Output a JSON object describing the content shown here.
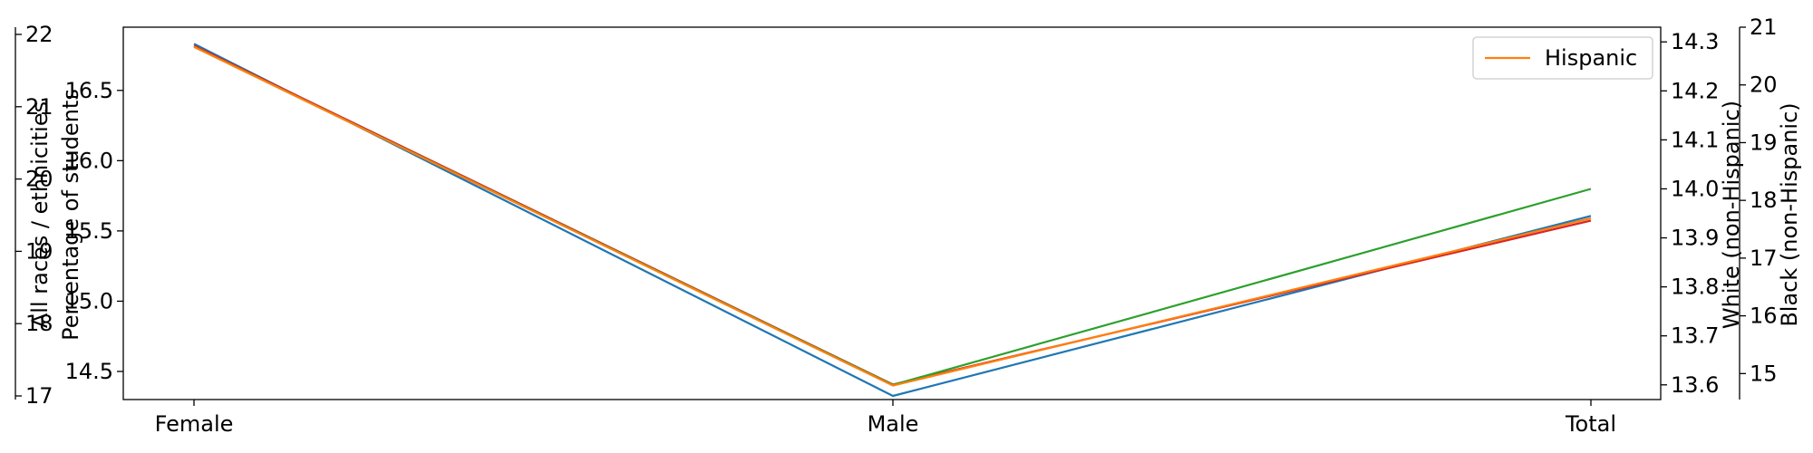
{
  "chart_data": {
    "type": "line",
    "categories": [
      "Female",
      "Male",
      "Total"
    ],
    "series": [
      {
        "name": "All races / ethnicities",
        "axis": "outer-left",
        "color": "#1f77b4",
        "values": [
          21.87,
          17.0,
          19.49
        ]
      },
      {
        "name": "Hispanic",
        "axis": "left",
        "color": "#ff7f0e",
        "values": [
          16.81,
          14.4,
          15.59
        ]
      },
      {
        "name": "White (non-Hispanic)",
        "axis": "right",
        "color": "#2ca02c",
        "values": [
          14.29,
          13.6,
          14.0
        ]
      },
      {
        "name": "Black (non-Hispanic)",
        "axis": "outer-right",
        "color": "#d62728",
        "values": [
          20.68,
          14.81,
          17.65
        ]
      }
    ],
    "axes": {
      "left": {
        "label": "Percentage of students",
        "ylim": [
          14.3,
          16.95
        ],
        "ticks": [
          "14.5",
          "15.0",
          "15.5",
          "16.0",
          "16.5"
        ]
      },
      "outer_left": {
        "label": "All races / ethnicities",
        "ylim": [
          16.95,
          22.1
        ],
        "ticks": [
          "17",
          "18",
          "19",
          "20",
          "21",
          "22"
        ]
      },
      "right": {
        "label": "White (non-Hispanic)",
        "ylim": [
          13.57,
          14.33
        ],
        "ticks": [
          "13.6",
          "13.7",
          "13.8",
          "13.9",
          "14.0",
          "14.1",
          "14.2",
          "14.3"
        ]
      },
      "outer_right": {
        "label": "Black (non-Hispanic)",
        "ylim": [
          14.55,
          21.0
        ],
        "ticks": [
          "15",
          "16",
          "17",
          "18",
          "19",
          "20",
          "21"
        ]
      }
    },
    "legend": {
      "placement": "top-right",
      "entries": [
        {
          "label": "Hispanic",
          "color": "#ff7f0e"
        }
      ]
    },
    "grid": false
  }
}
